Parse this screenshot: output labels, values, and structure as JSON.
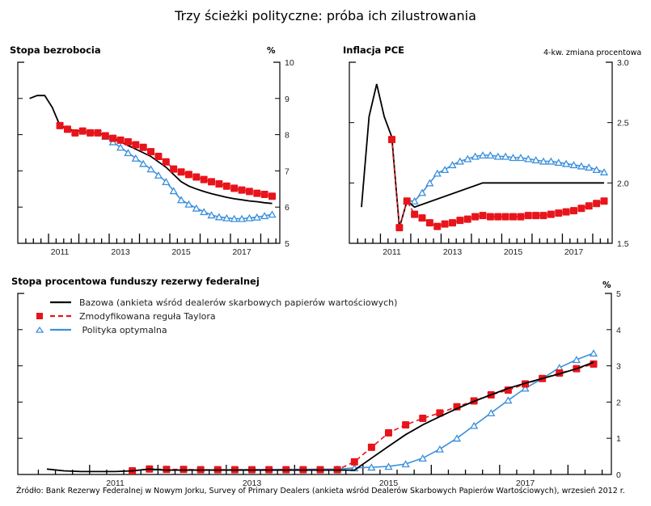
{
  "title": "Trzy ścieżki polityczne: próba ich zilustrowania",
  "source": "Źródło: Bank Rezerwy Federalnej w Nowym Jorku, Survey of Primary Dealers (ankieta wśród Dealerów Skarbowych Papierów Wartościowych), wrzesień 2012 r.",
  "colors": {
    "baseline": "#000000",
    "taylor": "#e8141b",
    "optimal": "#3a8fdc",
    "taylor_label": "#d42a2a",
    "optimal_label": "#2f9bd6"
  },
  "legend": [
    {
      "key": "baseline",
      "label": "Bazowa (ankieta wśród dealerów skarbowych papierów wartościowych)",
      "marker": "none",
      "line": "solid"
    },
    {
      "key": "taylor",
      "label": "Zmodyfikowana reguła Taylora",
      "marker": "square",
      "line": "dashed"
    },
    {
      "key": "optimal",
      "label": " Polityka optymalna",
      "marker": "triangle",
      "line": "solid"
    }
  ],
  "chart_data": [
    {
      "type": "line",
      "title": "Stopa bezrobocia",
      "ylabel": "%",
      "ylim": [
        5,
        10
      ],
      "yticks": [
        "5",
        "6",
        "7",
        "8",
        "9",
        "10"
      ],
      "xlim": [
        2010.25,
        2018.75
      ],
      "xticks": [
        "2011",
        "2013",
        "2015",
        "2017"
      ],
      "series": [
        {
          "name": "Bazowa",
          "key": "baseline",
          "x": [
            2010.5,
            2010.75,
            2011.0,
            2011.25,
            2011.5,
            2011.75,
            2012.0,
            2012.25,
            2012.5,
            2012.75,
            2013.0,
            2013.25,
            2013.5,
            2013.75,
            2014.0,
            2014.25,
            2014.5,
            2014.75,
            2015.0,
            2015.25,
            2015.5,
            2015.75,
            2016.0,
            2016.25,
            2016.5,
            2016.75,
            2017.0,
            2017.25,
            2017.5,
            2017.75,
            2018.0,
            2018.25,
            2018.5
          ],
          "values": [
            9.0,
            9.08,
            9.08,
            8.75,
            8.25,
            8.17,
            8.1,
            8.1,
            8.05,
            8.03,
            8.0,
            7.9,
            7.8,
            7.7,
            7.6,
            7.5,
            7.4,
            7.25,
            7.1,
            6.9,
            6.7,
            6.58,
            6.5,
            6.43,
            6.37,
            6.32,
            6.27,
            6.23,
            6.2,
            6.17,
            6.15,
            6.12,
            6.1
          ]
        },
        {
          "name": "Zmodyfikowana reguła Taylora",
          "key": "taylor",
          "x": [
            2011.5,
            2011.75,
            2012.0,
            2012.25,
            2012.5,
            2012.75,
            2013.0,
            2013.25,
            2013.5,
            2013.75,
            2014.0,
            2014.25,
            2014.5,
            2014.75,
            2015.0,
            2015.25,
            2015.5,
            2015.75,
            2016.0,
            2016.25,
            2016.5,
            2016.75,
            2017.0,
            2017.25,
            2017.5,
            2017.75,
            2018.0,
            2018.25,
            2018.5
          ],
          "values": [
            8.25,
            8.15,
            8.05,
            8.1,
            8.05,
            8.05,
            7.97,
            7.9,
            7.85,
            7.8,
            7.72,
            7.65,
            7.53,
            7.4,
            7.25,
            7.05,
            6.97,
            6.9,
            6.83,
            6.76,
            6.7,
            6.64,
            6.58,
            6.52,
            6.47,
            6.43,
            6.38,
            6.35,
            6.3
          ]
        },
        {
          "name": "Polityka optymalna",
          "key": "optimal",
          "x": [
            2013.0,
            2013.25,
            2013.5,
            2013.75,
            2014.0,
            2014.25,
            2014.5,
            2014.75,
            2015.0,
            2015.25,
            2015.5,
            2015.75,
            2016.0,
            2016.25,
            2016.5,
            2016.75,
            2017.0,
            2017.25,
            2017.5,
            2017.75,
            2018.0,
            2018.25,
            2018.5
          ],
          "values": [
            7.95,
            7.8,
            7.65,
            7.5,
            7.35,
            7.2,
            7.05,
            6.88,
            6.7,
            6.45,
            6.2,
            6.08,
            5.97,
            5.87,
            5.78,
            5.73,
            5.7,
            5.68,
            5.68,
            5.7,
            5.72,
            5.76,
            5.8
          ]
        }
      ]
    },
    {
      "type": "line",
      "title": "Inflacja PCE",
      "ylabel": "4-kw. zmiana procentowa",
      "ylim": [
        1.5,
        3.0
      ],
      "yticks": [
        "1.5",
        "2.0",
        "2.5",
        "3.0"
      ],
      "xlim": [
        2010.25,
        2018.75
      ],
      "xticks": [
        "2011",
        "2013",
        "2015",
        "2017"
      ],
      "series": [
        {
          "name": "Bazowa",
          "key": "baseline",
          "x": [
            2010.5,
            2010.75,
            2011.0,
            2011.25,
            2011.5,
            2011.75,
            2012.0,
            2012.25,
            2014.5,
            2018.5
          ],
          "values": [
            1.8,
            2.55,
            2.82,
            2.55,
            2.38,
            1.63,
            1.85,
            1.8,
            2.0,
            2.0
          ]
        },
        {
          "name": "Zmodyfikowana reguła Taylora",
          "key": "taylor",
          "x": [
            2011.5,
            2011.75,
            2012.0,
            2012.25,
            2012.5,
            2012.75,
            2013.0,
            2013.25,
            2013.5,
            2013.75,
            2014.0,
            2014.25,
            2014.5,
            2014.75,
            2015.0,
            2015.25,
            2015.5,
            2015.75,
            2016.0,
            2016.25,
            2016.5,
            2016.75,
            2017.0,
            2017.25,
            2017.5,
            2017.75,
            2018.0,
            2018.25,
            2018.5
          ],
          "values": [
            2.36,
            1.63,
            1.85,
            1.74,
            1.71,
            1.67,
            1.64,
            1.66,
            1.67,
            1.69,
            1.7,
            1.72,
            1.73,
            1.72,
            1.72,
            1.72,
            1.72,
            1.72,
            1.73,
            1.73,
            1.73,
            1.74,
            1.75,
            1.76,
            1.77,
            1.79,
            1.81,
            1.83,
            1.85
          ]
        },
        {
          "name": "Polityka optymalna",
          "key": "optimal",
          "x": [
            2012.0,
            2012.25,
            2012.5,
            2012.75,
            2013.0,
            2013.25,
            2013.5,
            2013.75,
            2014.0,
            2014.25,
            2014.5,
            2014.75,
            2015.0,
            2015.25,
            2015.5,
            2015.75,
            2016.0,
            2016.25,
            2016.5,
            2016.75,
            2017.0,
            2017.25,
            2017.5,
            2017.75,
            2018.0,
            2018.25,
            2018.5
          ],
          "values": [
            1.85,
            1.85,
            1.92,
            2.0,
            2.08,
            2.11,
            2.15,
            2.18,
            2.2,
            2.22,
            2.23,
            2.23,
            2.22,
            2.22,
            2.21,
            2.21,
            2.2,
            2.19,
            2.18,
            2.18,
            2.17,
            2.16,
            2.15,
            2.14,
            2.13,
            2.11,
            2.09
          ]
        }
      ]
    },
    {
      "type": "line",
      "title": "Stopa procentowa funduszy rezerwy federalnej",
      "ylabel": "%",
      "ylim": [
        0,
        5
      ],
      "yticks": [
        "0",
        "1",
        "2",
        "3",
        "4",
        "5"
      ],
      "xlim": [
        2010.25,
        2018.75
      ],
      "xticks": [
        "2011",
        "2013",
        "2015",
        "2017"
      ],
      "series": [
        {
          "name": "Bazowa",
          "key": "baseline",
          "x": [
            2010.5,
            2010.75,
            2011.0,
            2011.25,
            2011.5,
            2011.75,
            2012.0,
            2012.25,
            2012.5,
            2013.0,
            2014.0,
            2014.75,
            2015.0,
            2015.25,
            2015.5,
            2015.75,
            2016.0,
            2016.25,
            2016.5,
            2016.75,
            2017.0,
            2017.25,
            2017.5,
            2017.75,
            2018.0,
            2018.25,
            2018.5
          ],
          "values": [
            0.15,
            0.1,
            0.08,
            0.08,
            0.08,
            0.1,
            0.15,
            0.12,
            0.12,
            0.12,
            0.12,
            0.12,
            0.12,
            0.45,
            0.78,
            1.1,
            1.37,
            1.6,
            1.82,
            2.02,
            2.2,
            2.38,
            2.52,
            2.65,
            2.78,
            2.92,
            3.1
          ]
        },
        {
          "name": "Zmodyfikowana reguła Taylora",
          "key": "taylor",
          "x": [
            2011.75,
            2012.0,
            2012.25,
            2012.5,
            2012.75,
            2013.0,
            2013.25,
            2013.5,
            2013.75,
            2014.0,
            2014.25,
            2014.5,
            2014.75,
            2015.0,
            2015.25,
            2015.5,
            2015.75,
            2016.0,
            2016.25,
            2016.5,
            2016.75,
            2017.0,
            2017.25,
            2017.5,
            2017.75,
            2018.0,
            2018.25,
            2018.5
          ],
          "values": [
            0.1,
            0.15,
            0.14,
            0.14,
            0.13,
            0.13,
            0.13,
            0.13,
            0.13,
            0.13,
            0.13,
            0.13,
            0.13,
            0.35,
            0.75,
            1.15,
            1.37,
            1.55,
            1.7,
            1.87,
            2.03,
            2.2,
            2.33,
            2.5,
            2.65,
            2.8,
            2.92,
            3.05
          ]
        },
        {
          "name": "Polityka optymalna",
          "key": "optimal",
          "x": [
            2012.0,
            2014.75,
            2015.0,
            2015.25,
            2015.5,
            2015.75,
            2016.0,
            2016.25,
            2016.5,
            2016.75,
            2017.0,
            2017.25,
            2017.5,
            2017.75,
            2018.0,
            2018.25,
            2018.5
          ],
          "values": [
            0.12,
            0.15,
            0.18,
            0.2,
            0.22,
            0.29,
            0.45,
            0.7,
            1.0,
            1.35,
            1.7,
            2.05,
            2.38,
            2.65,
            2.95,
            3.17,
            3.35
          ]
        }
      ]
    }
  ]
}
